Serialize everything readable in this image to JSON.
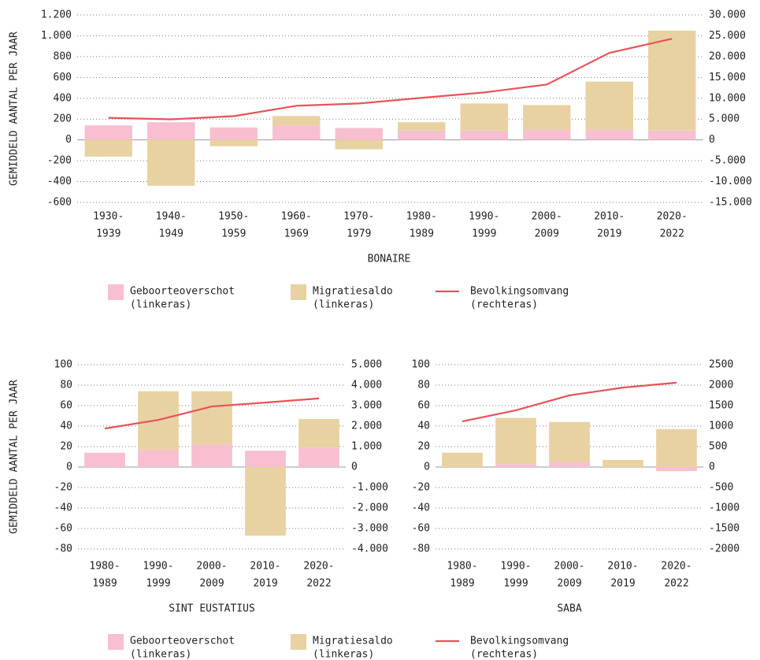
{
  "chart_data": [
    {
      "type": "bar",
      "x_label": "BONAIRE",
      "y_label": "GEMIDDELD AANTAL PER JAAR",
      "legend": true,
      "categories": [
        [
          "1930-",
          "1939"
        ],
        [
          "1940-",
          "1949"
        ],
        [
          "1950-",
          "1959"
        ],
        [
          "1960-",
          "1969"
        ],
        [
          "1970-",
          "1979"
        ],
        [
          "1980-",
          "1989"
        ],
        [
          "1990-",
          "1999"
        ],
        [
          "2000-",
          "2009"
        ],
        [
          "2010-",
          "2019"
        ],
        [
          "2020-",
          "2022"
        ]
      ],
      "series": [
        {
          "name": "Geboorteoverschot",
          "name_note": "(linkeras)",
          "type": "bar",
          "color": "#f7bfd0",
          "values": [
            140,
            170,
            120,
            140,
            115,
            90,
            90,
            100,
            100,
            90
          ]
        },
        {
          "name": "Migratiesaldo",
          "name_note": "(linkeras)",
          "type": "bar",
          "color": "#e8d2a2",
          "values": [
            -160,
            -440,
            -60,
            90,
            -90,
            80,
            260,
            235,
            460,
            960
          ]
        },
        {
          "name": "Bevolkingsomvang",
          "name_note": "(rechteras)",
          "type": "line",
          "axis": "y2",
          "color": "#e8525a",
          "values": [
            5300,
            4950,
            5700,
            8200,
            8750,
            10100,
            11400,
            13300,
            20900,
            24300
          ]
        }
      ],
      "ylim": [
        -600,
        1200
      ],
      "yticks": [
        -600,
        -400,
        -200,
        0,
        200,
        400,
        600,
        800,
        {
          "value": 1000,
          "label": "1.000"
        },
        {
          "value": 1200,
          "label": "1.200"
        }
      ],
      "y2lim": [
        -15000,
        30000
      ],
      "y2ticks": [
        {
          "value": -15000,
          "label": "-15.000"
        },
        {
          "value": -10000,
          "label": "-10.000"
        },
        {
          "value": -5000,
          "label": "-5.000"
        },
        0,
        {
          "value": 5000,
          "label": "5.000"
        },
        {
          "value": 10000,
          "label": "10.000"
        },
        {
          "value": 15000,
          "label": "15.000"
        },
        {
          "value": 20000,
          "label": "20.000"
        },
        {
          "value": 25000,
          "label": "25.000"
        },
        {
          "value": 30000,
          "label": "30.000"
        }
      ]
    },
    {
      "type": "bar",
      "x_label": "SINT EUSTATIUS",
      "y_label": "GEMIDDELD AANTAL PER JAAR",
      "legend": true,
      "categories": [
        [
          "1980-",
          "1989"
        ],
        [
          "1990-",
          "1999"
        ],
        [
          "2000-",
          "2009"
        ],
        [
          "2010-",
          "2019"
        ],
        [
          "2020-",
          "2022"
        ]
      ],
      "series": [
        {
          "name": "Geboorteoverschot",
          "name_note": "(linkeras)",
          "type": "bar",
          "color": "#f7bfd0",
          "values": [
            14,
            17,
            22,
            16,
            19
          ]
        },
        {
          "name": "Migratiesaldo",
          "name_note": "(linkeras)",
          "type": "bar",
          "color": "#e8d2a2",
          "values": [
            0,
            57,
            52,
            -67,
            28
          ]
        },
        {
          "name": "Bevolkingsomvang",
          "name_note": "(rechteras)",
          "type": "line",
          "axis": "y2",
          "color": "#e8525a",
          "values": [
            1880,
            2300,
            2960,
            3150,
            3350
          ]
        }
      ],
      "ylim": [
        -80,
        100
      ],
      "yticks": [
        -80,
        -60,
        -40,
        -20,
        0,
        20,
        40,
        60,
        80,
        100
      ],
      "y2lim": [
        -4000,
        5000
      ],
      "y2ticks": [
        {
          "value": -4000,
          "label": "-4.000"
        },
        {
          "value": -3000,
          "label": "-3.000"
        },
        {
          "value": -2000,
          "label": "-2.000"
        },
        {
          "value": -1000,
          "label": "-1.000"
        },
        0,
        {
          "value": 1000,
          "label": "1.000"
        },
        {
          "value": 2000,
          "label": "2.000"
        },
        {
          "value": 3000,
          "label": "3.000"
        },
        {
          "value": 4000,
          "label": "4.000"
        },
        {
          "value": 5000,
          "label": "5.000"
        }
      ]
    },
    {
      "type": "bar",
      "x_label": "SABA",
      "legend": false,
      "categories": [
        [
          "1980-",
          "1989"
        ],
        [
          "1990-",
          "1999"
        ],
        [
          "2000-",
          "2009"
        ],
        [
          "2010-",
          "2019"
        ],
        [
          "2020-",
          "2022"
        ]
      ],
      "series": [
        {
          "type": "bar",
          "color": "#f7bfd0",
          "values": [
            0,
            3,
            5,
            0,
            -4
          ]
        },
        {
          "type": "bar",
          "color": "#e8d2a2",
          "values": [
            14,
            45,
            39,
            7,
            37
          ]
        },
        {
          "type": "line",
          "axis": "y2",
          "color": "#e8525a",
          "values": [
            1115,
            1385,
            1750,
            1940,
            2060
          ]
        }
      ],
      "ylim": [
        -80,
        100
      ],
      "yticks": [
        -80,
        -60,
        -40,
        -20,
        0,
        20,
        40,
        60,
        80,
        100
      ],
      "y2lim": [
        -2000,
        2500
      ],
      "y2ticks": [
        -2000,
        -1500,
        -1000,
        -500,
        0,
        500,
        1000,
        1500,
        2000,
        2500
      ]
    }
  ]
}
